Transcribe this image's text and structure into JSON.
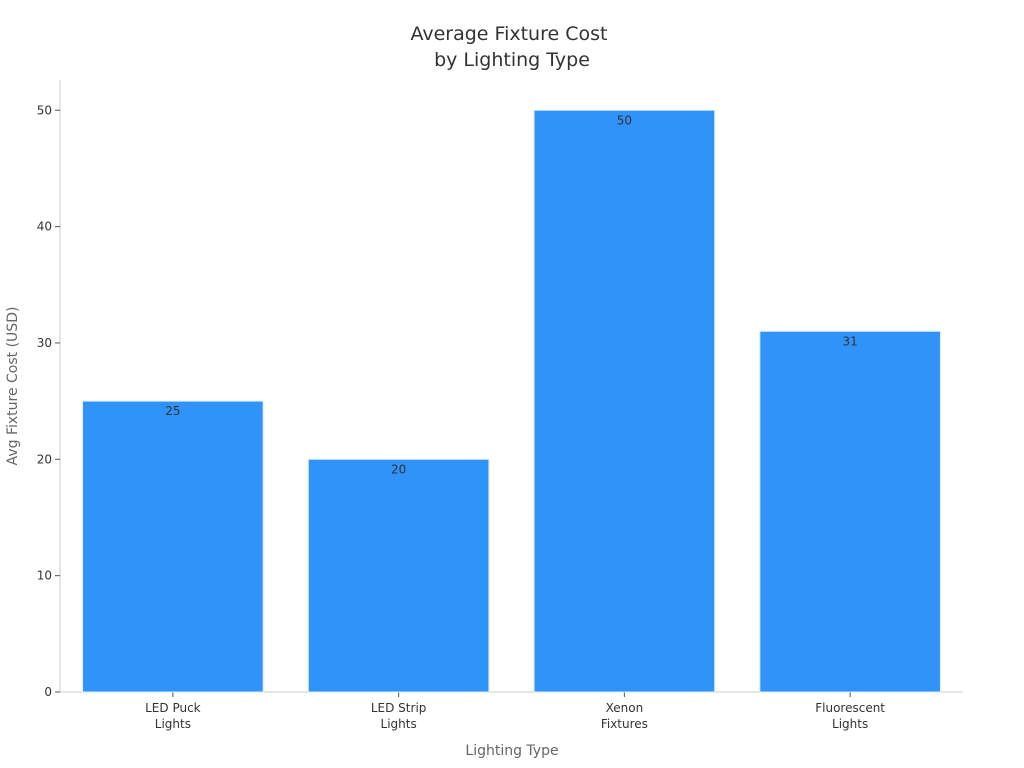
{
  "chart_data": {
    "type": "bar",
    "title": [
      "Average Fixture Cost",
      "by Lighting Type"
    ],
    "xlabel": "Lighting Type",
    "ylabel": "Avg Fixture Cost (USD)",
    "categories": [
      [
        "LED Puck",
        "Lights"
      ],
      [
        "LED Strip",
        "Lights"
      ],
      [
        "Xenon",
        "Fixtures"
      ],
      [
        "Fluorescent",
        "Lights"
      ]
    ],
    "values": [
      25,
      20,
      50,
      31
    ],
    "data_labels": [
      "25",
      "20",
      "50",
      "31"
    ],
    "ylim": [
      0,
      52.6
    ],
    "yticks": [
      0,
      10,
      20,
      30,
      40,
      50
    ],
    "ytick_labels": [
      "0",
      "10",
      "20",
      "30",
      "40",
      "50"
    ],
    "grid": false,
    "legend": "none",
    "colors": {
      "bar": "#2f93fa",
      "bar_edge": "#d9ecff",
      "axis": "#cccccc",
      "text": "#333333",
      "axis_label": "#666666"
    }
  }
}
